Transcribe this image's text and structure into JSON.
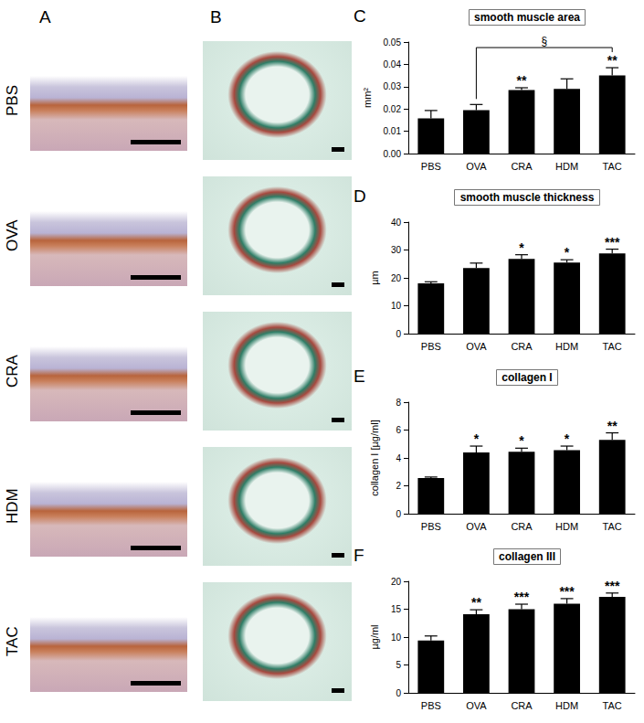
{
  "figure": {
    "image_panels": [
      {
        "label": "A"
      },
      {
        "label": "B"
      }
    ],
    "row_labels": [
      "PBS",
      "OVA",
      "CRA",
      "HDM",
      "TAC"
    ]
  },
  "chart_data": [
    {
      "label": "C",
      "type": "bar",
      "title": "smooth muscle area",
      "y_label": "mm²",
      "categories": [
        "PBS",
        "OVA",
        "CRA",
        "HDM",
        "TAC"
      ],
      "values": [
        0.0158,
        0.0195,
        0.0285,
        0.029,
        0.035
      ],
      "errors": [
        0.0035,
        0.0025,
        0.001,
        0.0045,
        0.0035
      ],
      "annotations": [
        null,
        null,
        "**",
        null,
        "**"
      ],
      "bracket": {
        "from": "OVA",
        "to": "TAC",
        "label": "§"
      },
      "color": "#000000",
      "ylim": [
        0,
        0.05
      ],
      "yticks": [
        {
          "value": 0,
          "label": "0.00"
        },
        0.01,
        0.02,
        0.03,
        0.04,
        0.05
      ],
      "grid": false
    },
    {
      "label": "D",
      "type": "bar",
      "title": "smooth muscle thickness",
      "y_label": "µm",
      "categories": [
        "PBS",
        "OVA",
        "CRA",
        "HDM",
        "TAC"
      ],
      "values": [
        18,
        23.5,
        26.8,
        25.5,
        28.8
      ],
      "errors": [
        0.6,
        1.8,
        1.5,
        1.0,
        1.5
      ],
      "annotations": [
        null,
        null,
        "*",
        "*",
        "***"
      ],
      "color": "#000000",
      "ylim": [
        0,
        40
      ],
      "yticks": [
        0,
        10,
        20,
        30,
        40
      ],
      "grid": false
    },
    {
      "label": "E",
      "type": "bar",
      "title": "collagen I",
      "y_label": "collagen I [µg/ml]",
      "categories": [
        "PBS",
        "OVA",
        "CRA",
        "HDM",
        "TAC"
      ],
      "values": [
        2.55,
        4.4,
        4.45,
        4.55,
        5.3
      ],
      "errors": [
        0.08,
        0.45,
        0.25,
        0.3,
        0.5
      ],
      "annotations": [
        null,
        "*",
        "*",
        "*",
        "**"
      ],
      "color": "#000000",
      "ylim": [
        0,
        8
      ],
      "yticks": [
        0,
        2,
        4,
        6,
        8
      ],
      "grid": false
    },
    {
      "label": "F",
      "type": "bar",
      "title": "collagen III",
      "y_label": "µg/ml",
      "categories": [
        "PBS",
        "OVA",
        "CRA",
        "HDM",
        "TAC"
      ],
      "values": [
        9.4,
        14.1,
        15,
        16,
        17.2
      ],
      "errors": [
        0.8,
        0.8,
        0.9,
        0.9,
        0.7
      ],
      "annotations": [
        null,
        "**",
        "***",
        "***",
        "***"
      ],
      "color": "#000000",
      "ylim": [
        0,
        20
      ],
      "yticks": [
        0,
        5,
        10,
        15,
        20
      ],
      "grid": false
    }
  ]
}
